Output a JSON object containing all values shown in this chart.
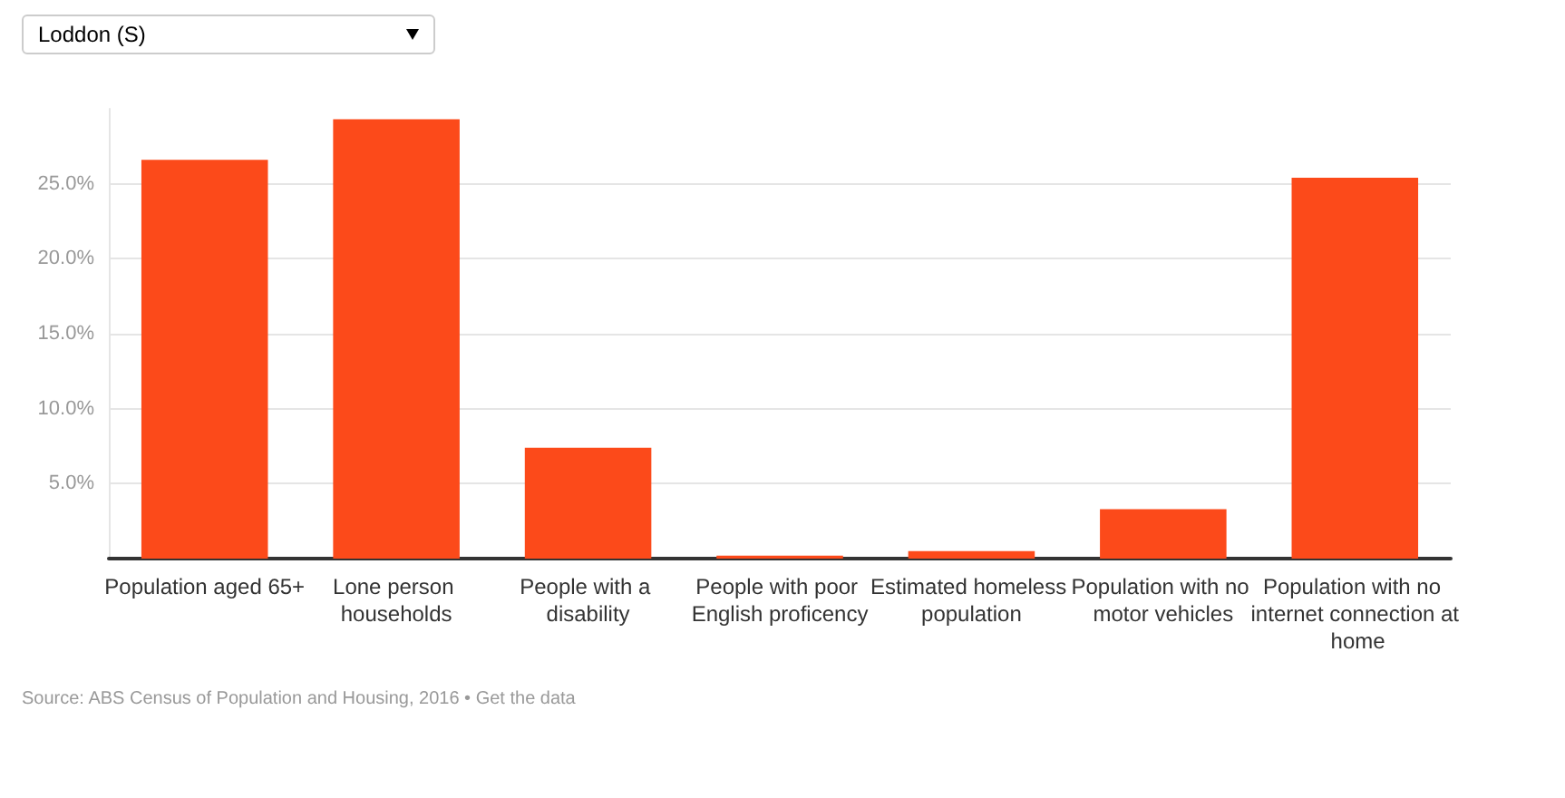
{
  "chart_data": {
    "type": "bar",
    "subtitle": "Loddon (S)",
    "categories": [
      "Population aged 65+",
      "Lone person households",
      "People with a disability",
      "People with poor English proficency",
      "Estimated homeless population",
      "Population with no motor vehicles",
      "Population with no internet connection at home"
    ],
    "values": [
      26.6,
      29.3,
      7.4,
      0.2,
      0.5,
      3.3,
      25.4
    ],
    "color": "#fc4a1a",
    "ylim": [
      0,
      30
    ],
    "yticks": [
      {
        "value": 5,
        "label": "5.0%"
      },
      {
        "value": 10,
        "label": "10.0%"
      },
      {
        "value": 15,
        "label": "15.0%"
      },
      {
        "value": 20,
        "label": "20.0%"
      },
      {
        "value": 25,
        "label": "25.0%"
      }
    ],
    "grid": "y",
    "annotations": [
      "Source: ABS Census of Population and Housing, 2016 • Get the data"
    ]
  }
}
